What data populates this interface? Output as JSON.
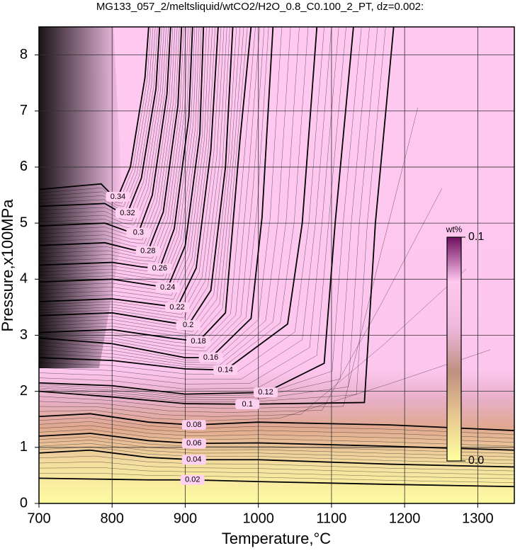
{
  "chart_data": {
    "type": "contour",
    "title": "MG133_057_2/meltsliquid/wtCO2/H2O_0.8_C0.100_2_PT, dz=0.002:",
    "x_label": "Temperature,°C",
    "y_label": "Pressure,x100MPa",
    "xlim": [
      700,
      1350
    ],
    "ylim": [
      0,
      8.5
    ],
    "xticks": [
      700,
      800,
      900,
      1000,
      1100,
      1200,
      1300
    ],
    "yticks": [
      0,
      1,
      2,
      3,
      4,
      5,
      6,
      7,
      8
    ],
    "grid": true,
    "contours": [
      {
        "level": 0.02,
        "x": [
          700,
          800,
          850,
          910,
          1000,
          1180,
          1350
        ],
        "y": [
          0.45,
          0.43,
          0.42,
          0.42,
          0.39,
          0.34,
          0.3
        ]
      },
      {
        "level": 0.04,
        "x": [
          700,
          770,
          850,
          912,
          1000,
          1180,
          1350
        ],
        "y": [
          0.9,
          0.95,
          0.82,
          0.78,
          0.78,
          0.7,
          0.65
        ]
      },
      {
        "level": 0.06,
        "x": [
          700,
          770,
          850,
          912,
          1000,
          1180,
          1350
        ],
        "y": [
          1.2,
          1.25,
          1.12,
          1.07,
          1.08,
          1.02,
          0.95
        ]
      },
      {
        "level": 0.08,
        "x": [
          700,
          770,
          850,
          912,
          1000,
          1180,
          1350
        ],
        "y": [
          1.55,
          1.6,
          1.45,
          1.4,
          1.45,
          1.4,
          1.3
        ]
      },
      {
        "level": 0.1,
        "x": [
          700,
          800,
          900,
          985,
          1145,
          1160,
          1185
        ],
        "y": [
          2.0,
          1.9,
          1.78,
          1.77,
          1.8,
          5,
          8.5
        ]
      },
      {
        "level": 0.12,
        "x": [
          700,
          800,
          900,
          1010,
          1090,
          1105,
          1130
        ],
        "y": [
          2.15,
          2.1,
          1.95,
          1.98,
          2.5,
          5,
          8.5
        ]
      },
      {
        "level": 0.14,
        "x": [
          700,
          800,
          900,
          955,
          1040,
          1060,
          1080
        ],
        "y": [
          2.6,
          2.55,
          2.4,
          2.38,
          3.2,
          5,
          8.5
        ]
      },
      {
        "level": 0.16,
        "x": [
          700,
          800,
          900,
          935,
          990,
          1005,
          1020
        ],
        "y": [
          2.95,
          2.85,
          2.6,
          2.6,
          3.3,
          5.1,
          8.5
        ]
      },
      {
        "level": 0.18,
        "x": [
          700,
          800,
          880,
          918,
          955,
          975,
          990
        ],
        "y": [
          3.05,
          3.1,
          2.95,
          2.89,
          3.4,
          6.5,
          8.5
        ]
      },
      {
        "level": 0.2,
        "x": [
          700,
          800,
          870,
          904,
          935,
          955,
          965
        ],
        "y": [
          3.35,
          3.4,
          3.25,
          3.18,
          3.8,
          6,
          8.5
        ]
      },
      {
        "level": 0.22,
        "x": [
          700,
          800,
          860,
          889,
          915,
          935,
          945
        ],
        "y": [
          3.6,
          3.65,
          3.55,
          3.5,
          4.2,
          6.3,
          8.5
        ]
      },
      {
        "level": 0.24,
        "x": [
          700,
          800,
          850,
          876,
          900,
          920,
          925
        ],
        "y": [
          3.95,
          4.0,
          3.9,
          3.85,
          4.6,
          6.6,
          8.5
        ]
      },
      {
        "level": 0.26,
        "x": [
          700,
          800,
          840,
          865,
          885,
          905,
          910
        ],
        "y": [
          4.25,
          4.3,
          4.22,
          4.19,
          4.9,
          6.9,
          8.5
        ]
      },
      {
        "level": 0.28,
        "x": [
          700,
          790,
          830,
          849,
          870,
          890,
          895
        ],
        "y": [
          4.6,
          4.65,
          4.52,
          4.5,
          5.2,
          7.1,
          8.5
        ]
      },
      {
        "level": 0.3,
        "x": [
          700,
          790,
          820,
          836,
          855,
          875,
          880
        ],
        "y": [
          4.95,
          5.0,
          4.86,
          4.83,
          5.5,
          7.3,
          8.5
        ]
      },
      {
        "level": 0.32,
        "x": [
          700,
          790,
          810,
          821,
          840,
          860,
          865
        ],
        "y": [
          5.3,
          5.35,
          5.2,
          5.18,
          5.8,
          7.4,
          8.5
        ]
      },
      {
        "level": 0.34,
        "x": [
          700,
          785,
          800,
          808,
          825,
          845,
          850
        ],
        "y": [
          5.6,
          5.7,
          5.5,
          5.47,
          6.0,
          7.6,
          8.5
        ]
      }
    ],
    "colorbar": {
      "title": "wt%",
      "clim": [
        0,
        0.1
      ],
      "ticks": [
        {
          "value": 0,
          "label": "0.0"
        },
        0.1
      ],
      "colors": [
        "#ffffa0",
        "#e8c890",
        "#c09080",
        "#f0b8e0",
        "#ffc8f0",
        "#701060"
      ]
    }
  }
}
